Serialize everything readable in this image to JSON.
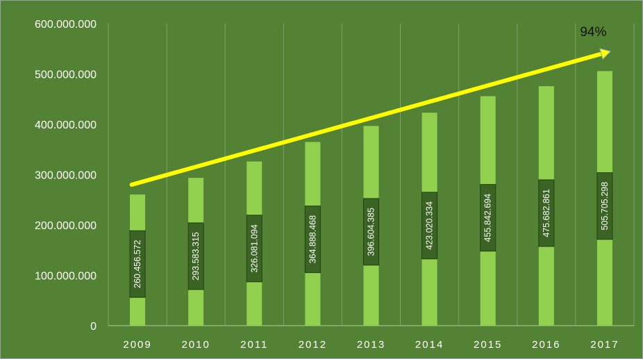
{
  "chart_data": {
    "type": "bar",
    "categories": [
      "2009",
      "2010",
      "2011",
      "2012",
      "2013",
      "2014",
      "2015",
      "2016",
      "2017"
    ],
    "values": [
      260456572,
      293583315,
      326081094,
      364888468,
      396604385,
      423020334,
      455842694,
      475682861,
      505705298
    ],
    "data_labels": [
      "260.456.572",
      "293.583.315",
      "326.081.094",
      "364.888.468",
      "396.604.385",
      "423.020.334",
      "455.842.694",
      "475.682.861",
      "505.705.298"
    ],
    "ylim": [
      0,
      600000000
    ],
    "yticks": [
      0,
      100000000,
      200000000,
      300000000,
      400000000,
      500000000,
      600000000
    ],
    "ytick_labels": [
      "0",
      "100.000.000",
      "200.000.000",
      "300.000.000",
      "400.000.000",
      "500.000.000",
      "600.000.000"
    ],
    "grid": "vertical",
    "legend": "none",
    "trend_arrow": {
      "from": 280000000,
      "to": 545000000,
      "label": "94%"
    },
    "colors": {
      "background": "#548235",
      "bar": "#92d050",
      "label_box": "#3b6324",
      "label_border": "#1f3f12",
      "gridline": "#7ea06a",
      "axis": "#9bbf85",
      "arrow": "#ffff00"
    }
  }
}
